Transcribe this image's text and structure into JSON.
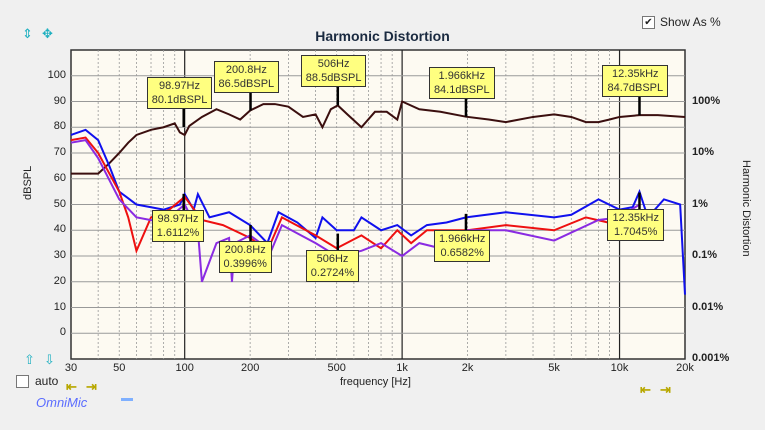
{
  "title": "Harmonic Distortion",
  "show_as_percent": {
    "label": "Show As %",
    "checked": true
  },
  "auto": {
    "label": "auto",
    "checked": false
  },
  "brand": "OmniMic",
  "chart_data": {
    "type": "line",
    "title": "Harmonic Distortion",
    "xlabel": "frequency [Hz]",
    "ylabel": "dBSPL",
    "y2label": "Harmonic Distortion",
    "xscale": "log",
    "xlim": [
      30,
      20000
    ],
    "ylim": [
      -10,
      110
    ],
    "grid": true,
    "xticks": [
      {
        "v": 30,
        "l": "30"
      },
      {
        "v": 50,
        "l": "50"
      },
      {
        "v": 100,
        "l": "100"
      },
      {
        "v": 200,
        "l": "200"
      },
      {
        "v": 500,
        "l": "500"
      },
      {
        "v": 1000,
        "l": "1k"
      },
      {
        "v": 2000,
        "l": "2k"
      },
      {
        "v": 5000,
        "l": "5k"
      },
      {
        "v": 10000,
        "l": "10k"
      },
      {
        "v": 20000,
        "l": "20k"
      }
    ],
    "yticks": [
      0,
      10,
      20,
      30,
      40,
      50,
      60,
      70,
      80,
      90,
      100
    ],
    "y2ticks": [
      {
        "db": 90,
        "l": "100%"
      },
      {
        "db": 70,
        "l": "10%"
      },
      {
        "db": 50,
        "l": "1%"
      },
      {
        "db": 30,
        "l": "0.1%"
      },
      {
        "db": 10,
        "l": "0.01%"
      },
      {
        "db": -10,
        "l": "0.001%"
      }
    ],
    "series": [
      {
        "color": "#3b0f0f",
        "x": [
          30,
          40,
          45,
          50,
          55,
          60,
          70,
          80,
          90,
          95,
          100,
          105,
          120,
          140,
          160,
          180,
          200,
          230,
          260,
          300,
          350,
          400,
          430,
          470,
          506,
          560,
          650,
          750,
          850,
          950,
          1000,
          1200,
          1500,
          1966,
          2500,
          3000,
          4000,
          5000,
          6000,
          7000,
          8000,
          9000,
          10000,
          12350,
          15000,
          20000
        ],
        "y": [
          62,
          62,
          66,
          70,
          74,
          77,
          79,
          80,
          81.5,
          78,
          77,
          80.5,
          84,
          87,
          85,
          83,
          86.5,
          89,
          89,
          88,
          84,
          85,
          80,
          87,
          88.5,
          85,
          80,
          86,
          86,
          83,
          90,
          87,
          86,
          84.1,
          83,
          82,
          84,
          85,
          84,
          82,
          82,
          83,
          84,
          84.7,
          84.7,
          84
        ]
      },
      {
        "color": "#1010ee",
        "x": [
          30,
          35,
          40,
          45,
          50,
          60,
          80,
          95,
          100,
          110,
          115,
          130,
          160,
          200,
          240,
          270,
          330,
          400,
          430,
          500,
          600,
          650,
          800,
          950,
          1100,
          1300,
          1600,
          1966,
          3000,
          5000,
          6000,
          8000,
          10000,
          11500,
          12350,
          13500,
          16000,
          19000,
          20000
        ],
        "y": [
          77,
          79,
          75,
          65,
          55,
          50,
          48,
          50,
          54,
          48,
          54,
          45,
          47,
          42,
          35,
          47,
          43,
          37,
          45,
          40,
          40,
          45,
          40,
          42,
          38,
          42,
          43,
          45,
          47,
          45,
          46,
          52,
          48,
          49,
          55,
          45,
          52,
          50,
          15
        ]
      },
      {
        "color": "#ee1010",
        "x": [
          30,
          35,
          40,
          50,
          55,
          60,
          70,
          85,
          100,
          120,
          150,
          200,
          240,
          280,
          400,
          500,
          650,
          800,
          950,
          1100,
          1300,
          2000,
          3000,
          5000,
          7000,
          10000
        ],
        "y": [
          75,
          76,
          70,
          55,
          45,
          32,
          45,
          48,
          53,
          44,
          42,
          37,
          32,
          45,
          38,
          33,
          38,
          33,
          40,
          35,
          40,
          40,
          42,
          40,
          45,
          42
        ]
      },
      {
        "color": "#8a2be2",
        "x": [
          30,
          35,
          40,
          50,
          60,
          80,
          100,
          115,
          120,
          140,
          160,
          165,
          170,
          200,
          250,
          280,
          400,
          500,
          650,
          800,
          1000,
          1200,
          1500,
          2000,
          3000,
          5000,
          8000,
          10000,
          12350
        ],
        "y": [
          74,
          75,
          68,
          52,
          45,
          43,
          50,
          40,
          20,
          35,
          37,
          20,
          35,
          38,
          32,
          42,
          35,
          30,
          32,
          35,
          30,
          35,
          33,
          40,
          40,
          36,
          44,
          45,
          50
        ]
      }
    ],
    "markers": [
      {
        "freq": 98.97,
        "fund_label": "98.97Hz",
        "fund_value": "80.1dBSPL",
        "fund_db": 80.1,
        "dist_label": "98.97Hz",
        "dist_value": "1.6112%",
        "dist_pct": 1.6112
      },
      {
        "freq": 200.8,
        "fund_label": "200.8Hz",
        "fund_value": "86.5dBSPL",
        "fund_db": 86.5,
        "dist_label": "200.8Hz",
        "dist_value": "0.3996%",
        "dist_pct": 0.3996
      },
      {
        "freq": 506,
        "fund_label": "506Hz",
        "fund_value": "88.5dBSPL",
        "fund_db": 88.5,
        "dist_label": "506Hz",
        "dist_value": "0.2724%",
        "dist_pct": 0.2724
      },
      {
        "freq": 1966,
        "fund_label": "1.966kHz",
        "fund_value": "84.1dBSPL",
        "fund_db": 84.1,
        "dist_label": "1.966kHz",
        "dist_value": "0.6582%",
        "dist_pct": 0.6582
      },
      {
        "freq": 12350,
        "fund_label": "12.35kHz",
        "fund_value": "84.7dBSPL",
        "fund_db": 84.7,
        "dist_label": "12.35kHz",
        "dist_value": "1.7045%",
        "dist_pct": 1.7045
      }
    ]
  }
}
